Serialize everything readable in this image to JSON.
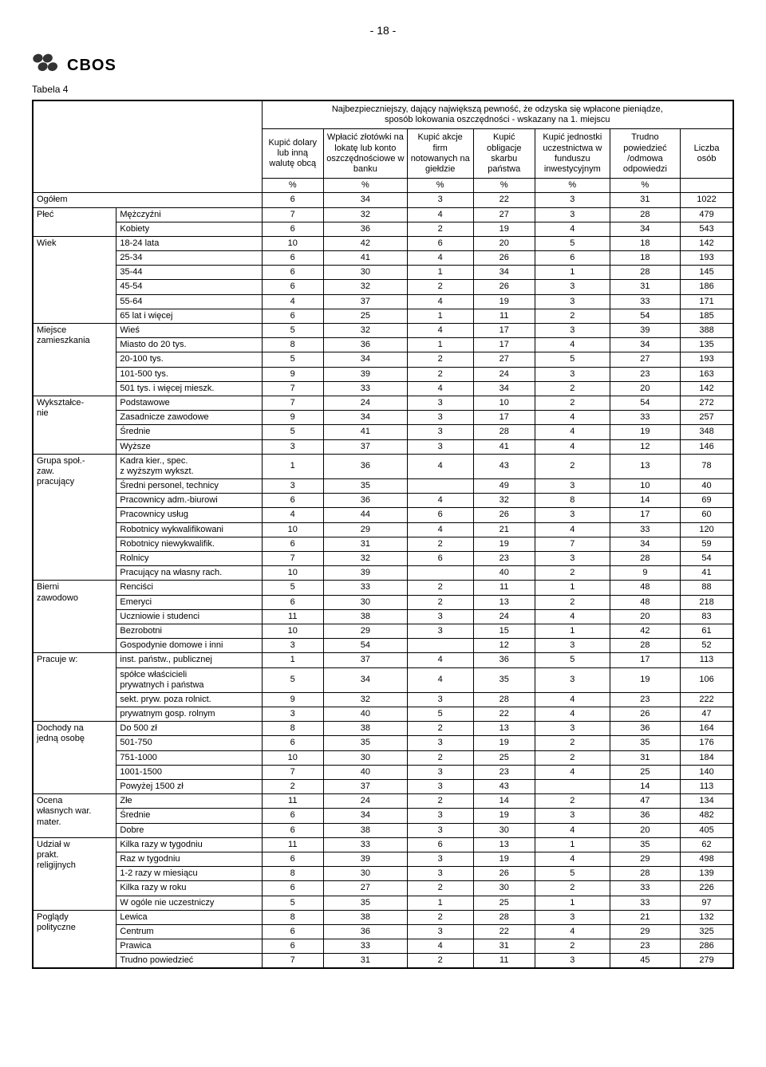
{
  "pageNumber": "- 18 -",
  "logoText": "CBOS",
  "tableLabel": "Tabela 4",
  "headerTop": "Najbezpieczniejszy, dający największą pewność, że odzyska się wpłacone pieniądze,\nsposób lokowania oszczędności - wskazany na 1. miejscu",
  "cols": [
    "Kupić dolary lub inną walutę obcą",
    "Wpłacić złotówki na lokatę lub konto oszczędnościowe w banku",
    "Kupić akcje firm notowanych na giełdzie",
    "Kupić obligacje skarbu państwa",
    "Kupić jednostki uczestnictwa w funduszu inwestycyjnym",
    "Trudno powiedzieć /odmowa odpowiedzi"
  ],
  "liczba": "Liczba osób",
  "pct": "%",
  "sections": [
    {
      "cat": "Ogółem",
      "rows": [
        {
          "label": "",
          "v": [
            6,
            34,
            3,
            22,
            3,
            31,
            1022
          ]
        }
      ]
    },
    {
      "cat": "Płeć",
      "rows": [
        {
          "label": "Mężczyźni",
          "v": [
            7,
            32,
            4,
            27,
            3,
            28,
            479
          ]
        },
        {
          "label": "Kobiety",
          "v": [
            6,
            36,
            2,
            19,
            4,
            34,
            543
          ]
        }
      ]
    },
    {
      "cat": "Wiek",
      "rows": [
        {
          "label": "18-24 lata",
          "v": [
            10,
            42,
            6,
            20,
            5,
            18,
            142
          ]
        },
        {
          "label": "25-34",
          "v": [
            6,
            41,
            4,
            26,
            6,
            18,
            193
          ]
        },
        {
          "label": "35-44",
          "v": [
            6,
            30,
            1,
            34,
            1,
            28,
            145
          ]
        },
        {
          "label": "45-54",
          "v": [
            6,
            32,
            2,
            26,
            3,
            31,
            186
          ]
        },
        {
          "label": "55-64",
          "v": [
            4,
            37,
            4,
            19,
            3,
            33,
            171
          ]
        },
        {
          "label": "65 lat i więcej",
          "v": [
            6,
            25,
            1,
            11,
            2,
            54,
            185
          ]
        }
      ]
    },
    {
      "cat": "Miejsce zamieszkania",
      "rows": [
        {
          "label": "Wieś",
          "v": [
            5,
            32,
            4,
            17,
            3,
            39,
            388
          ]
        },
        {
          "label": "Miasto do 20 tys.",
          "v": [
            8,
            36,
            1,
            17,
            4,
            34,
            135
          ]
        },
        {
          "label": "20-100 tys.",
          "v": [
            5,
            34,
            2,
            27,
            5,
            27,
            193
          ]
        },
        {
          "label": "101-500 tys.",
          "v": [
            9,
            39,
            2,
            24,
            3,
            23,
            163
          ]
        },
        {
          "label": "501 tys. i więcej mieszk.",
          "v": [
            7,
            33,
            4,
            34,
            2,
            20,
            142
          ]
        }
      ]
    },
    {
      "cat": "Wykształce-\nnie",
      "rows": [
        {
          "label": "Podstawowe",
          "v": [
            7,
            24,
            3,
            10,
            2,
            54,
            272
          ]
        },
        {
          "label": "Zasadnicze zawodowe",
          "v": [
            9,
            34,
            3,
            17,
            4,
            33,
            257
          ]
        },
        {
          "label": "Średnie",
          "v": [
            5,
            41,
            3,
            28,
            4,
            19,
            348
          ]
        },
        {
          "label": "Wyższe",
          "v": [
            3,
            37,
            3,
            41,
            4,
            12,
            146
          ]
        }
      ]
    },
    {
      "cat": "Grupa społ.-\nzaw.\npracujący",
      "rows": [
        {
          "label": "Kadra kier., spec.\nz wyższym wykszt.",
          "v": [
            1,
            36,
            4,
            43,
            2,
            13,
            78
          ]
        },
        {
          "label": "Średni personel, technicy",
          "v": [
            3,
            35,
            "",
            49,
            3,
            10,
            40
          ]
        },
        {
          "label": "Pracownicy adm.-biurowi",
          "v": [
            6,
            36,
            4,
            32,
            8,
            14,
            69
          ]
        },
        {
          "label": "Pracownicy usług",
          "v": [
            4,
            44,
            6,
            26,
            3,
            17,
            60
          ]
        },
        {
          "label": "Robotnicy wykwalifikowani",
          "v": [
            10,
            29,
            4,
            21,
            4,
            33,
            120
          ]
        },
        {
          "label": "Robotnicy niewykwalifik.",
          "v": [
            6,
            31,
            2,
            19,
            7,
            34,
            59
          ]
        },
        {
          "label": "Rolnicy",
          "v": [
            7,
            32,
            6,
            23,
            3,
            28,
            54
          ]
        },
        {
          "label": "Pracujący na własny rach.",
          "v": [
            10,
            39,
            "",
            40,
            2,
            9,
            41
          ]
        }
      ]
    },
    {
      "cat": "Bierni\nzawodowo",
      "rows": [
        {
          "label": "Renciści",
          "v": [
            5,
            33,
            2,
            11,
            1,
            48,
            88
          ]
        },
        {
          "label": "Emeryci",
          "v": [
            6,
            30,
            2,
            13,
            2,
            48,
            218
          ]
        },
        {
          "label": "Uczniowie i studenci",
          "v": [
            11,
            38,
            3,
            24,
            4,
            20,
            83
          ]
        },
        {
          "label": "Bezrobotni",
          "v": [
            10,
            29,
            3,
            15,
            1,
            42,
            61
          ]
        },
        {
          "label": "Gospodynie domowe i inni",
          "v": [
            3,
            54,
            "",
            12,
            3,
            28,
            52
          ]
        }
      ]
    },
    {
      "cat": "Pracuje w:",
      "rows": [
        {
          "label": "inst. państw., publicznej",
          "v": [
            1,
            37,
            4,
            36,
            5,
            17,
            113
          ]
        },
        {
          "label": "spółce właścicieli\nprywatnych i państwa",
          "v": [
            5,
            34,
            4,
            35,
            3,
            19,
            106
          ]
        },
        {
          "label": "sekt. pryw. poza rolnict.",
          "v": [
            9,
            32,
            3,
            28,
            4,
            23,
            222
          ]
        },
        {
          "label": "prywatnym gosp. rolnym",
          "v": [
            3,
            40,
            5,
            22,
            4,
            26,
            47
          ]
        }
      ]
    },
    {
      "cat": "Dochody na\njedną osobę",
      "rows": [
        {
          "label": "Do 500 zł",
          "v": [
            8,
            38,
            2,
            13,
            3,
            36,
            164
          ]
        },
        {
          "label": "501-750",
          "v": [
            6,
            35,
            3,
            19,
            2,
            35,
            176
          ]
        },
        {
          "label": "751-1000",
          "v": [
            10,
            30,
            2,
            25,
            2,
            31,
            184
          ]
        },
        {
          "label": "1001-1500",
          "v": [
            7,
            40,
            3,
            23,
            4,
            25,
            140
          ]
        },
        {
          "label": "Powyżej 1500 zł",
          "v": [
            2,
            37,
            3,
            43,
            "",
            14,
            113
          ]
        }
      ]
    },
    {
      "cat": "Ocena\nwłasnych war.\nmater.",
      "rows": [
        {
          "label": "Złe",
          "v": [
            11,
            24,
            2,
            14,
            2,
            47,
            134
          ]
        },
        {
          "label": "Średnie",
          "v": [
            6,
            34,
            3,
            19,
            3,
            36,
            482
          ]
        },
        {
          "label": "Dobre",
          "v": [
            6,
            38,
            3,
            30,
            4,
            20,
            405
          ]
        }
      ]
    },
    {
      "cat": "Udział w\nprakt.\nreligijnych",
      "rows": [
        {
          "label": "Kilka razy w tygodniu",
          "v": [
            11,
            33,
            6,
            13,
            1,
            35,
            62
          ]
        },
        {
          "label": "Raz w tygodniu",
          "v": [
            6,
            39,
            3,
            19,
            4,
            29,
            498
          ]
        },
        {
          "label": "1-2 razy w miesiącu",
          "v": [
            8,
            30,
            3,
            26,
            5,
            28,
            139
          ]
        },
        {
          "label": "Kilka razy w roku",
          "v": [
            6,
            27,
            2,
            30,
            2,
            33,
            226
          ]
        },
        {
          "label": "W ogóle nie uczestniczy",
          "v": [
            5,
            35,
            1,
            25,
            1,
            33,
            97
          ]
        }
      ]
    },
    {
      "cat": "Poglądy\npolityczne",
      "rows": [
        {
          "label": "Lewica",
          "v": [
            8,
            38,
            2,
            28,
            3,
            21,
            132
          ]
        },
        {
          "label": "Centrum",
          "v": [
            6,
            36,
            3,
            22,
            4,
            29,
            325
          ]
        },
        {
          "label": "Prawica",
          "v": [
            6,
            33,
            4,
            31,
            2,
            23,
            286
          ]
        },
        {
          "label": "Trudno powiedzieć",
          "v": [
            7,
            31,
            2,
            11,
            3,
            45,
            279
          ]
        }
      ]
    }
  ],
  "style": {
    "colWidths": [
      "95px",
      "165px",
      "70px",
      "95px",
      "75px",
      "70px",
      "85px",
      "80px",
      "60px"
    ],
    "fontSize": 11,
    "headerFontSize": 11
  }
}
